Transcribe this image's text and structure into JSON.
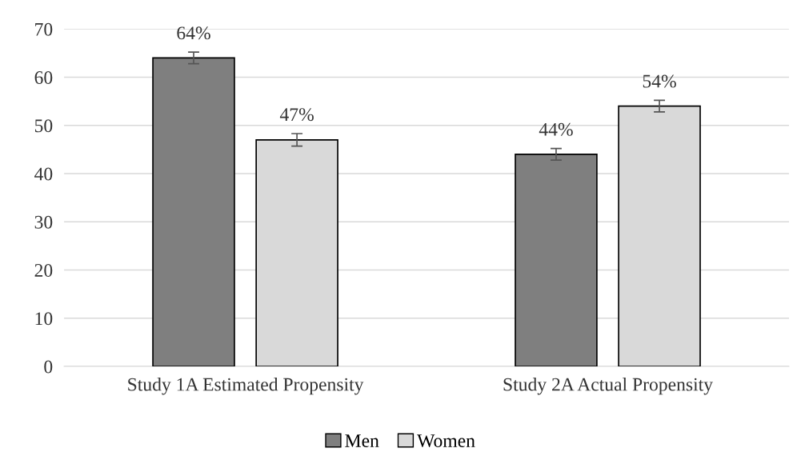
{
  "chart_data": {
    "type": "bar",
    "categories": [
      "Study 1A Estimated Propensity",
      "Study 2A Actual Propensity"
    ],
    "series": [
      {
        "name": "Men",
        "color": "#7f7f7f",
        "values": [
          64,
          44
        ],
        "errors": [
          1.2,
          1.2
        ],
        "value_labels": [
          "64%",
          "44%"
        ]
      },
      {
        "name": "Women",
        "color": "#d9d9d9",
        "values": [
          47,
          54
        ],
        "errors": [
          1.3,
          1.2
        ],
        "value_labels": [
          "47%",
          "54%"
        ]
      }
    ],
    "ylim": [
      0,
      70
    ],
    "yticks": [
      0,
      10,
      20,
      30,
      40,
      50,
      60,
      70
    ],
    "grid": "y",
    "legend": "bottom"
  }
}
